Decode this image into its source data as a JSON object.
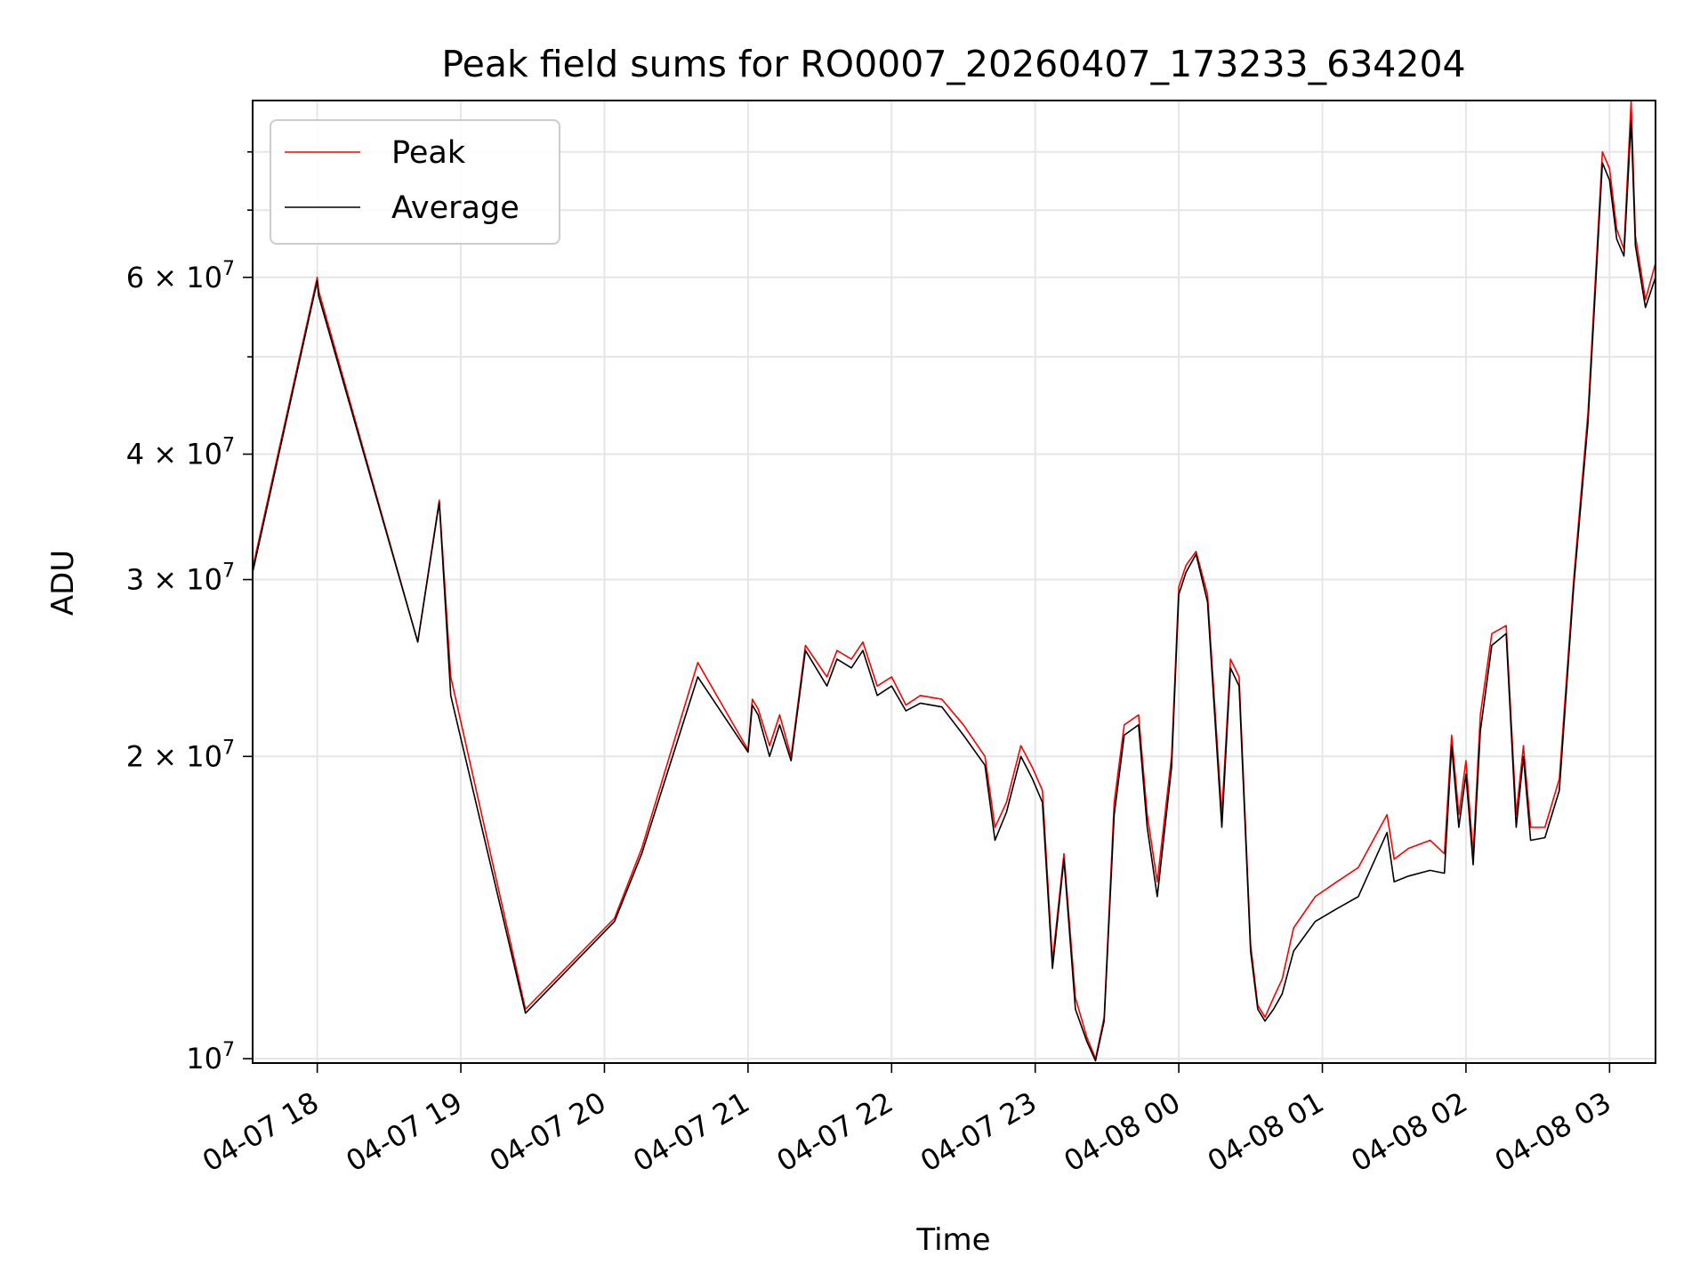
{
  "chart_data": {
    "type": "line",
    "title": "Peak field sums for RO0007_20260407_173233_634204",
    "xlabel": "Time",
    "ylabel": "ADU",
    "yscale": "log",
    "ylim": [
      9900000,
      90000000
    ],
    "xlim_hours": [
      17.55,
      27.32
    ],
    "grid": true,
    "legend_position": "upper-left",
    "x_ticks": [
      {
        "hour": 18,
        "label": "04-07 18"
      },
      {
        "hour": 19,
        "label": "04-07 19"
      },
      {
        "hour": 20,
        "label": "04-07 20"
      },
      {
        "hour": 21,
        "label": "04-07 21"
      },
      {
        "hour": 22,
        "label": "04-07 22"
      },
      {
        "hour": 23,
        "label": "04-07 23"
      },
      {
        "hour": 24,
        "label": "04-08 00"
      },
      {
        "hour": 25,
        "label": "04-08 01"
      },
      {
        "hour": 26,
        "label": "04-08 02"
      },
      {
        "hour": 27,
        "label": "04-08 03"
      }
    ],
    "y_ticks": [
      {
        "value": 10000000,
        "mantissa": "",
        "exponent": "7"
      },
      {
        "value": 20000000,
        "mantissa": "2",
        "exponent": "7"
      },
      {
        "value": 30000000,
        "mantissa": "3",
        "exponent": "7"
      },
      {
        "value": 40000000,
        "mantissa": "4",
        "exponent": "7"
      },
      {
        "value": 60000000,
        "mantissa": "6",
        "exponent": "7"
      }
    ],
    "y_tick_base": "× 10",
    "y_minor_ticks": [
      50000000,
      70000000,
      80000000
    ],
    "series": [
      {
        "name": "Peak",
        "color": "#ff0000",
        "x": [
          17.55,
          18.0,
          18.01,
          18.7,
          18.85,
          18.93,
          19.45,
          20.07,
          20.26,
          20.65,
          21.0,
          21.03,
          21.07,
          21.15,
          21.22,
          21.3,
          21.4,
          21.55,
          21.62,
          21.72,
          21.8,
          21.9,
          22.0,
          22.1,
          22.2,
          22.35,
          22.5,
          22.65,
          22.72,
          22.8,
          22.9,
          22.98,
          23.05,
          23.12,
          23.2,
          23.28,
          23.36,
          23.42,
          23.48,
          23.55,
          23.62,
          23.72,
          23.78,
          23.85,
          23.95,
          24.0,
          24.05,
          24.12,
          24.2,
          24.3,
          24.36,
          24.42,
          24.5,
          24.55,
          24.6,
          24.66,
          24.72,
          24.8,
          24.95,
          25.1,
          25.25,
          25.45,
          25.5,
          25.6,
          25.75,
          25.85,
          25.9,
          25.95,
          26.0,
          26.05,
          26.1,
          26.18,
          26.28,
          26.35,
          26.4,
          26.45,
          26.55,
          26.65,
          26.75,
          26.85,
          26.95,
          27.0,
          27.05,
          27.1,
          27.15,
          27.18,
          27.25,
          27.32
        ],
        "y": [
          30800000,
          60000000,
          58200000,
          26000000,
          36000000,
          24000000,
          11200000,
          13800000,
          16200000,
          24800000,
          20300000,
          22800000,
          22300000,
          20500000,
          22000000,
          20000000,
          25800000,
          24000000,
          25500000,
          25000000,
          26000000,
          23500000,
          24000000,
          22500000,
          23000000,
          22800000,
          21500000,
          20000000,
          17000000,
          18000000,
          20500000,
          19500000,
          18500000,
          12500000,
          16000000,
          11500000,
          10500000,
          10000000,
          11000000,
          18000000,
          21500000,
          22000000,
          17500000,
          15000000,
          20000000,
          29500000,
          31000000,
          32000000,
          29000000,
          17500000,
          25000000,
          24000000,
          13000000,
          11300000,
          11000000,
          11500000,
          12000000,
          13500000,
          14500000,
          15000000,
          15500000,
          17500000,
          15800000,
          16200000,
          16500000,
          16000000,
          21000000,
          17500000,
          19800000,
          16000000,
          22000000,
          26500000,
          27000000,
          17500000,
          20500000,
          17000000,
          17000000,
          19000000,
          30000000,
          44000000,
          80000000,
          77000000,
          67000000,
          64000000,
          90000000,
          66000000,
          57000000,
          62000000
        ]
      },
      {
        "name": "Average",
        "color": "#000000",
        "x": [
          17.55,
          18.0,
          18.01,
          18.7,
          18.85,
          18.93,
          19.45,
          20.07,
          20.26,
          20.65,
          21.0,
          21.03,
          21.07,
          21.15,
          21.22,
          21.3,
          21.4,
          21.55,
          21.62,
          21.72,
          21.8,
          21.9,
          22.0,
          22.1,
          22.2,
          22.35,
          22.5,
          22.65,
          22.72,
          22.8,
          22.9,
          22.98,
          23.05,
          23.12,
          23.2,
          23.28,
          23.36,
          23.42,
          23.48,
          23.55,
          23.62,
          23.72,
          23.78,
          23.85,
          23.95,
          24.0,
          24.05,
          24.12,
          24.2,
          24.3,
          24.36,
          24.42,
          24.5,
          24.55,
          24.6,
          24.66,
          24.72,
          24.8,
          24.95,
          25.1,
          25.25,
          25.45,
          25.5,
          25.6,
          25.75,
          25.85,
          25.9,
          25.95,
          26.0,
          26.05,
          26.1,
          26.18,
          26.28,
          26.35,
          26.4,
          26.45,
          26.55,
          26.65,
          26.75,
          26.85,
          26.95,
          27.0,
          27.05,
          27.1,
          27.15,
          27.18,
          27.25,
          27.32
        ],
        "y": [
          30500000,
          59500000,
          57500000,
          26000000,
          35800000,
          23000000,
          11100000,
          13700000,
          16000000,
          24000000,
          20200000,
          22500000,
          22000000,
          20000000,
          21500000,
          19800000,
          25500000,
          23500000,
          25000000,
          24500000,
          25500000,
          23000000,
          23500000,
          22200000,
          22600000,
          22400000,
          21000000,
          19600000,
          16500000,
          17600000,
          20000000,
          19000000,
          18000000,
          12300000,
          15800000,
          11200000,
          10400000,
          9950000,
          10900000,
          17500000,
          21000000,
          21500000,
          17000000,
          14500000,
          19500000,
          29000000,
          30500000,
          31800000,
          28500000,
          17000000,
          24500000,
          23500000,
          12800000,
          11200000,
          10900000,
          11200000,
          11600000,
          12800000,
          13700000,
          14100000,
          14500000,
          16800000,
          15000000,
          15200000,
          15400000,
          15300000,
          20500000,
          17000000,
          19200000,
          15600000,
          21200000,
          25800000,
          26500000,
          17000000,
          20000000,
          16500000,
          16600000,
          18500000,
          29500000,
          43000000,
          78000000,
          75000000,
          65500000,
          63000000,
          86000000,
          64500000,
          56000000,
          60000000
        ]
      }
    ]
  }
}
